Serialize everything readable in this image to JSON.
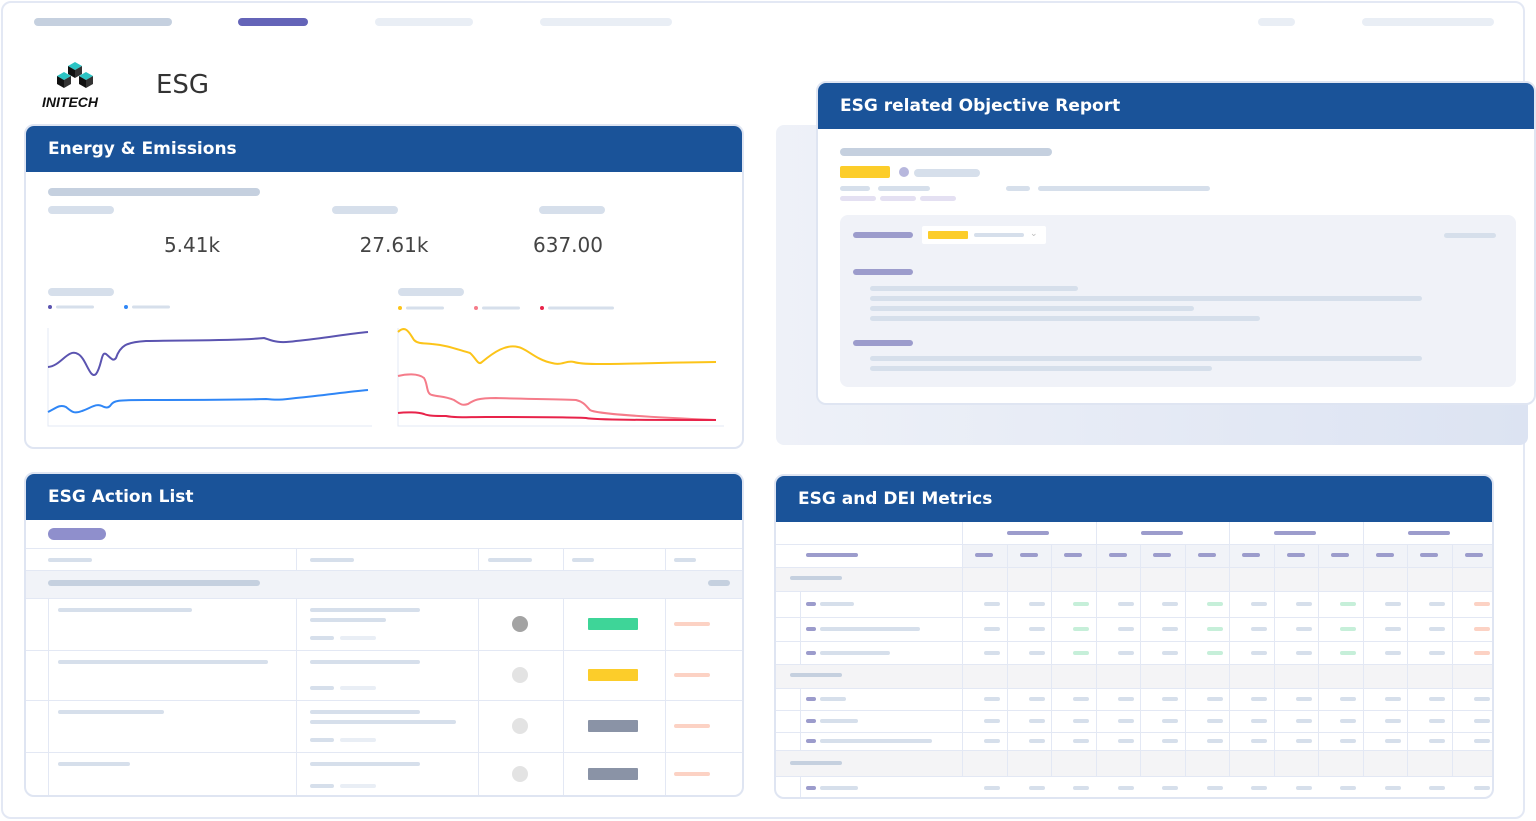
{
  "header": {
    "brand": "INITECH",
    "title": "ESG",
    "nav_colors": {
      "active": "#6464b8",
      "inactive": "#e9eef5"
    }
  },
  "energy": {
    "title": "Energy & Emissions",
    "kpis": [
      "5.41k",
      "27.61k",
      "637.00"
    ],
    "chart_left_series_colors": [
      "#5b54b0",
      "#2f86f6"
    ],
    "chart_right_series_colors": [
      "#fcc419",
      "#f57c8a",
      "#e8234a"
    ]
  },
  "objective": {
    "title": "ESG related Objective Report",
    "accent": "#fccd2a"
  },
  "actions": {
    "title": "ESG Action List",
    "rows": [
      {
        "status_dot": "#a3a3a3",
        "badge": "#3ed598"
      },
      {
        "status_dot": "#e3e3e3",
        "badge": "#fccd2a"
      },
      {
        "status_dot": "#e3e3e3",
        "badge": "#8a93a6"
      },
      {
        "status_dot": "#e3e3e3",
        "badge": "#8a93a6"
      }
    ]
  },
  "metrics": {
    "title": "ESG and DEI Metrics",
    "colors": {
      "good": "#c6efd9",
      "bad": "#fcd2c4",
      "neutral": "#d6dfeb"
    }
  },
  "theme": {
    "header_bg": "#1a5399"
  }
}
